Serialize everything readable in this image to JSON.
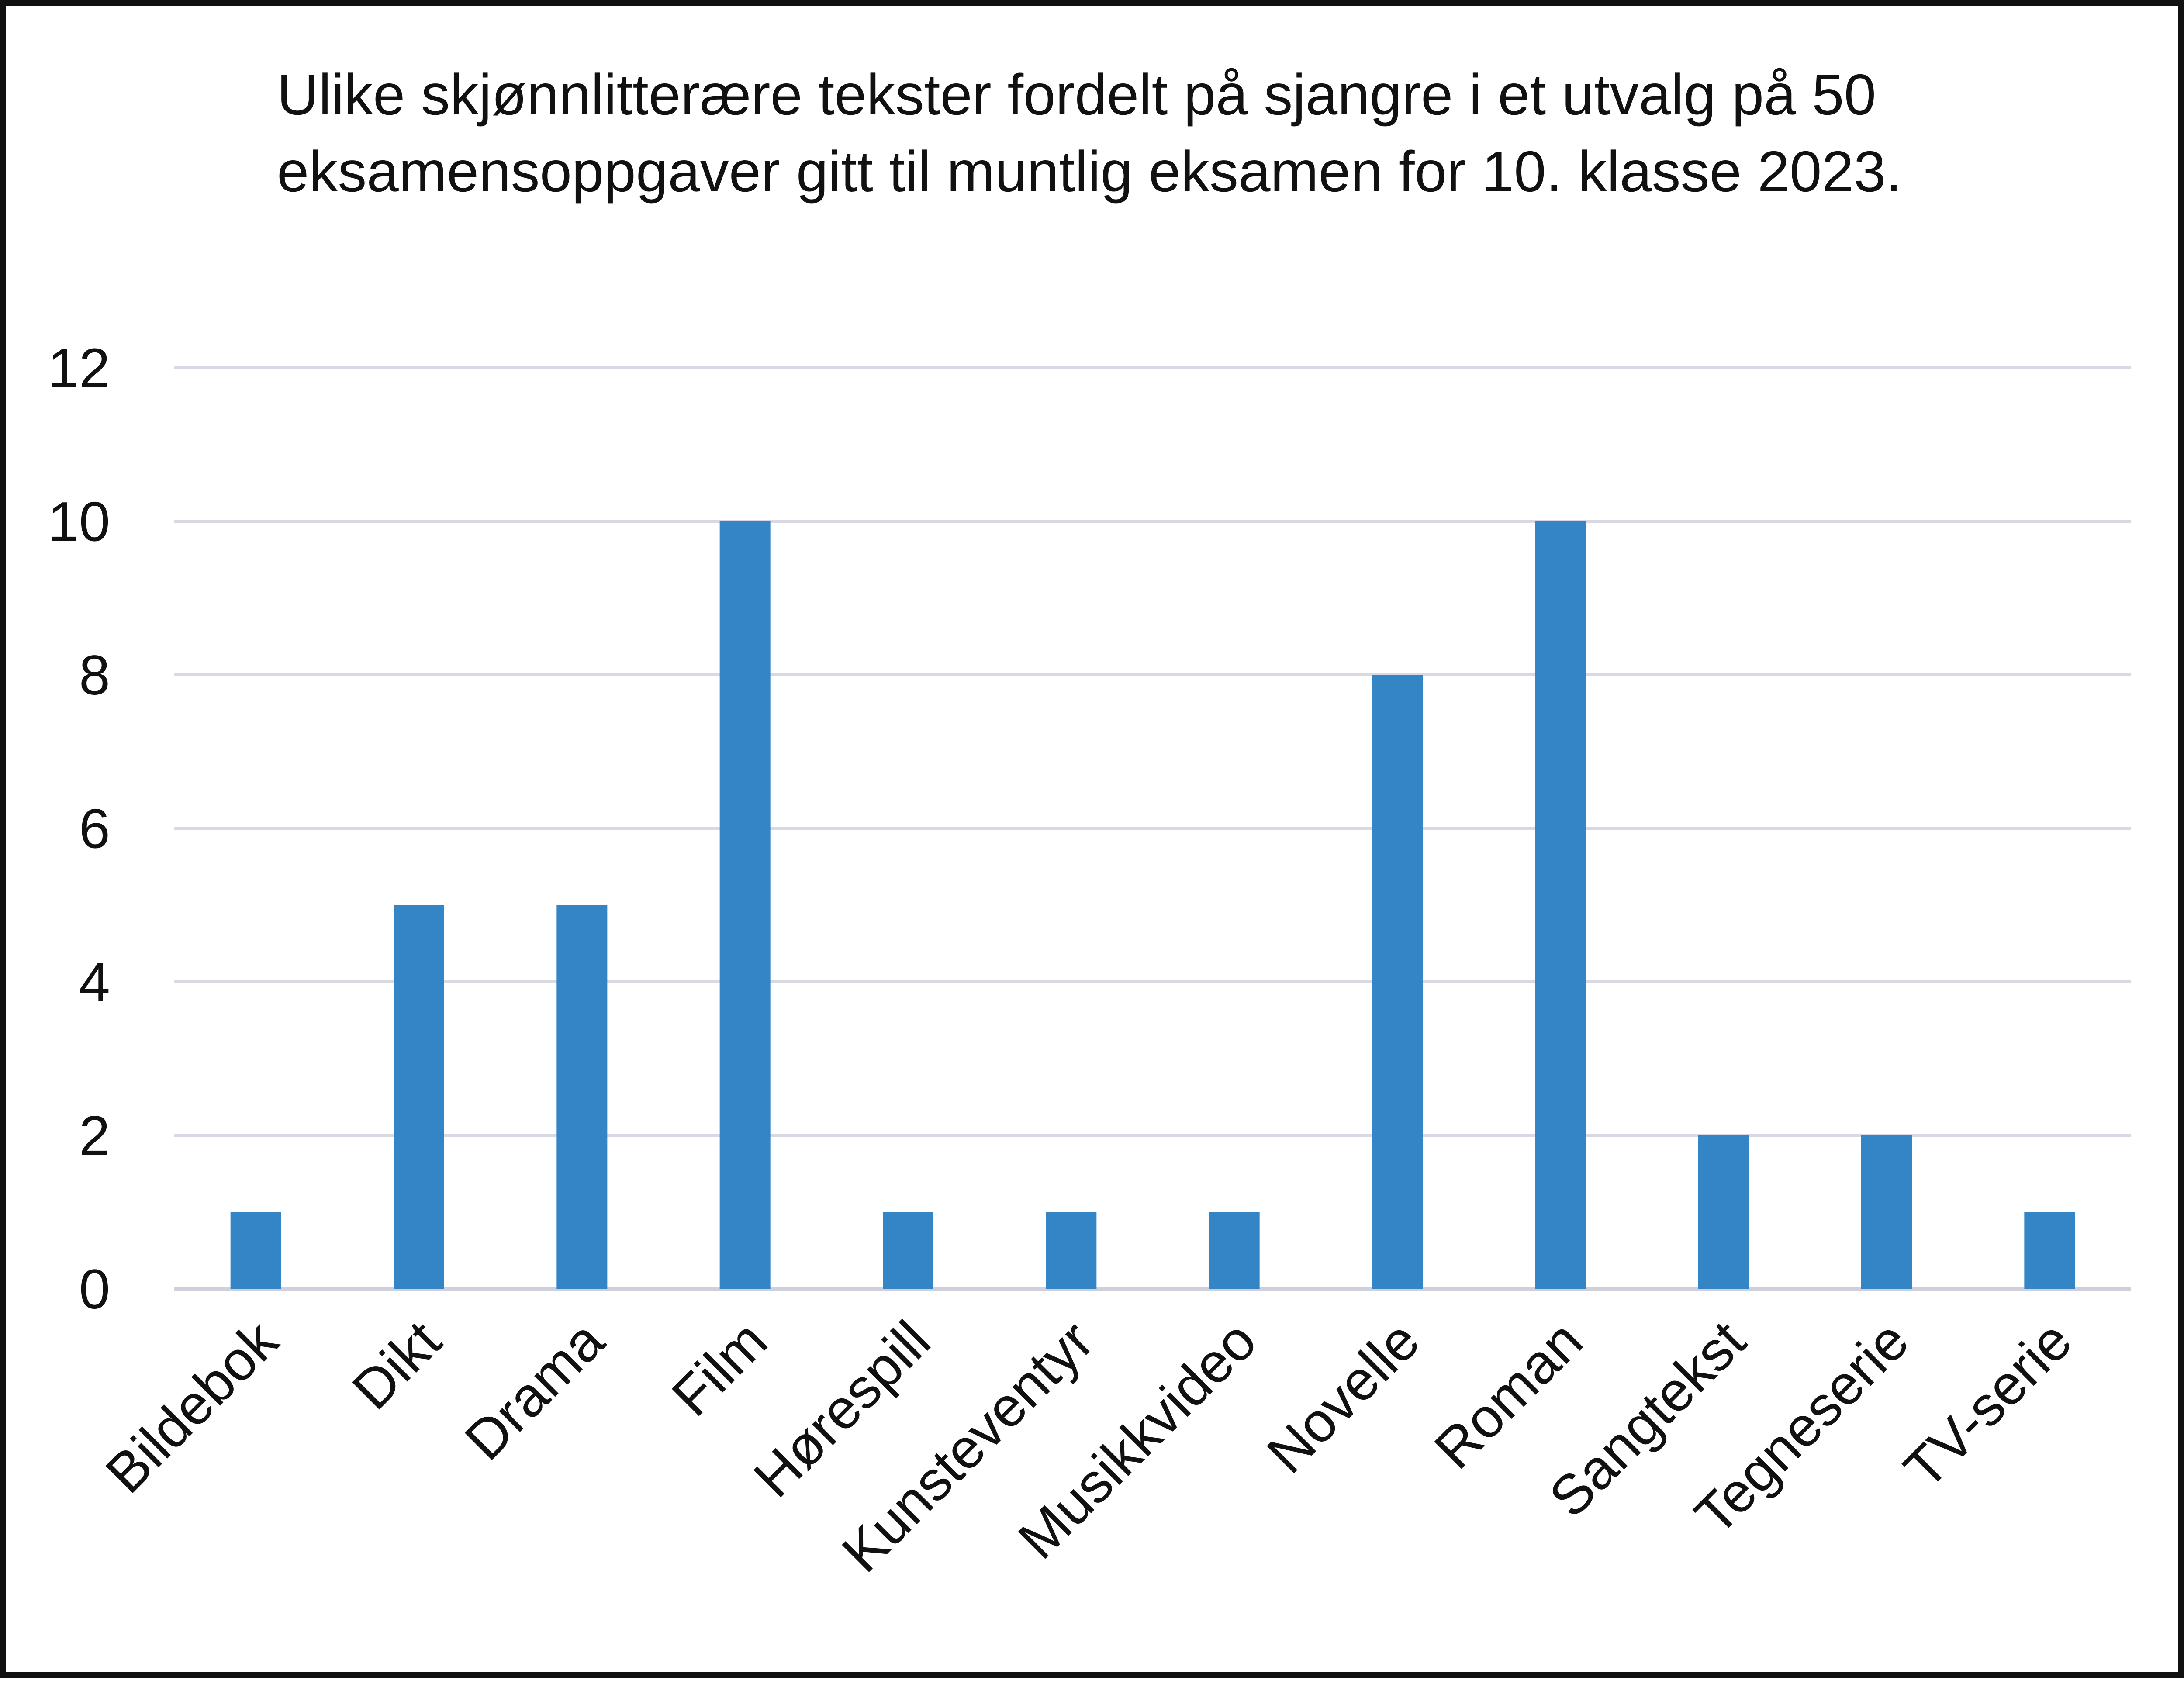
{
  "chart_data": {
    "type": "bar",
    "title": "Ulike skjønnlitterære tekster fordelt på sjangre i et utvalg på 50 eksamensoppgaver gitt til muntlig eksamen for 10. klasse 2023.",
    "categories": [
      "Bildebok",
      "Dikt",
      "Drama",
      "Film",
      "Hørespill",
      "Kunsteventyr",
      "Musikkvideo",
      "Novelle",
      "Roman",
      "Sangtekst",
      "Tegneserie",
      "TV-serie"
    ],
    "values": [
      1,
      5,
      5,
      10,
      1,
      1,
      1,
      8,
      10,
      2,
      2,
      1
    ],
    "ylim": [
      0,
      12
    ],
    "yticks": [
      0,
      2,
      4,
      6,
      8,
      10,
      12
    ],
    "grid": true,
    "legend": "none",
    "bar_color": "#3385c6",
    "grid_color": "#d9d9e3",
    "frame_color": "#111111"
  }
}
